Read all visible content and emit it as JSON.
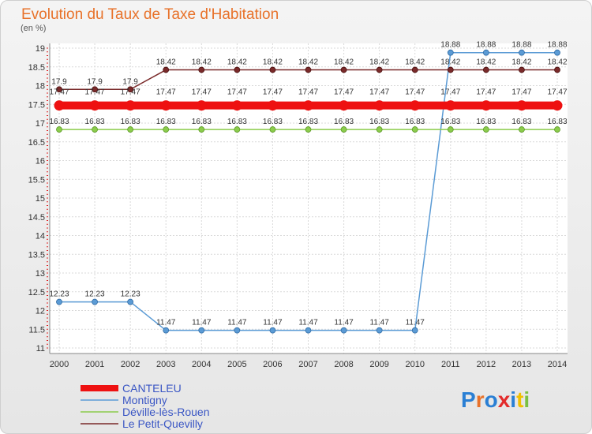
{
  "chart_data": {
    "type": "line",
    "title": "Evolution du Taux de Taxe d'Habitation",
    "subtitle": "(en %)",
    "xlabel": "",
    "ylabel": "",
    "categories": [
      "2000",
      "2001",
      "2002",
      "2003",
      "2004",
      "2005",
      "2006",
      "2007",
      "2008",
      "2009",
      "2010",
      "2011",
      "2012",
      "2013",
      "2014"
    ],
    "ylim": [
      10.9,
      19.1
    ],
    "yticks": [
      "11",
      "11.5",
      "12",
      "12.5",
      "13",
      "13.5",
      "14",
      "14.5",
      "15",
      "15.5",
      "16",
      "16.5",
      "17",
      "17.5",
      "18",
      "18.5",
      "19"
    ],
    "grid": true,
    "legend_position": "bottom-left",
    "series": [
      {
        "name": "CANTELEU",
        "color": "#ee1111",
        "values": [
          17.47,
          17.47,
          17.47,
          17.47,
          17.47,
          17.47,
          17.47,
          17.47,
          17.47,
          17.47,
          17.47,
          17.47,
          17.47,
          17.47,
          17.47
        ]
      },
      {
        "name": "Montigny",
        "color": "#5b9bd5",
        "values": [
          12.23,
          12.23,
          12.23,
          11.47,
          11.47,
          11.47,
          11.47,
          11.47,
          11.47,
          11.47,
          11.47,
          18.88,
          18.88,
          18.88,
          18.88
        ]
      },
      {
        "name": "Déville-lès-Rouen",
        "color": "#8ccc4c",
        "values": [
          16.83,
          16.83,
          16.83,
          16.83,
          16.83,
          16.83,
          16.83,
          16.83,
          16.83,
          16.83,
          16.83,
          16.83,
          16.83,
          16.83,
          16.83
        ]
      },
      {
        "name": "Le Petit-Quevilly",
        "color": "#7a2a2a",
        "values": [
          17.9,
          17.9,
          17.9,
          18.42,
          18.42,
          18.42,
          18.42,
          18.42,
          18.42,
          18.42,
          18.42,
          18.42,
          18.42,
          18.42,
          18.42
        ]
      }
    ]
  },
  "logo": {
    "text": "Proxiti",
    "colors": [
      "#2a7fd4",
      "#e8722a",
      "#2a7fd4",
      "#e32b2b",
      "#2a7fd4",
      "#f0c000",
      "#7bc043"
    ]
  }
}
